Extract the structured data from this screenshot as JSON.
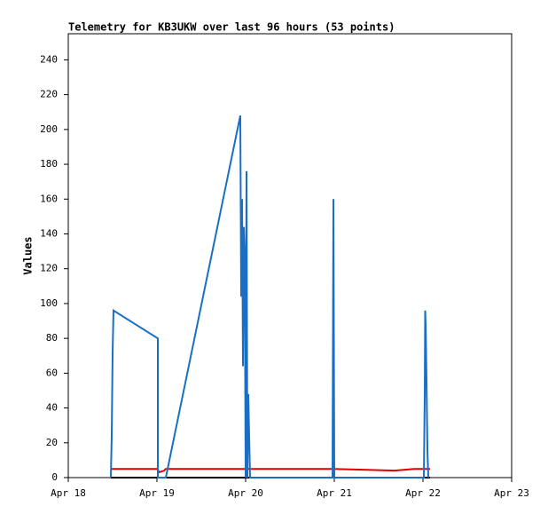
{
  "chart_data": {
    "type": "line",
    "title": "Telemetry for KB3UKW over last 96 hours (53 points)",
    "y_label": "Values",
    "xlim": [
      18,
      23
    ],
    "xticks": [
      {
        "value": 18,
        "label": "Apr 18"
      },
      {
        "value": 19,
        "label": "Apr 19"
      },
      {
        "value": 20,
        "label": "Apr 20"
      },
      {
        "value": 21,
        "label": "Apr 21"
      },
      {
        "value": 22,
        "label": "Apr 22"
      },
      {
        "value": 23,
        "label": "Apr 23"
      }
    ],
    "ylim": [
      0,
      255
    ],
    "yticks": [
      0,
      20,
      40,
      60,
      80,
      100,
      120,
      140,
      160,
      180,
      200,
      220,
      240
    ],
    "series": [
      {
        "color": "#000000",
        "x": [
          18.48,
          22.08
        ],
        "values": [
          0,
          0
        ]
      },
      {
        "color": "#e00000",
        "x": [
          18.48,
          19.01,
          19.02,
          19.08,
          19.1,
          20.98,
          21.28,
          21.68,
          21.9,
          22.08
        ],
        "values": [
          5,
          5,
          3,
          4,
          5,
          5,
          4.6,
          4,
          5,
          5
        ]
      },
      {
        "color": "#1a6fc4",
        "x": [
          18.48,
          18.49,
          18.5,
          18.51,
          19.01,
          19.01,
          19.1,
          19.94,
          19.95,
          19.96,
          19.97,
          19.98,
          19.99,
          20.0,
          20.01,
          20.02,
          20.03,
          20.04,
          20.05,
          20.98,
          20.985,
          20.99,
          21.0,
          22.01,
          22.02,
          22.025,
          22.03,
          22.04,
          22.05,
          22.06
        ],
        "values": [
          0,
          24,
          72,
          96,
          80,
          0,
          0,
          208,
          104,
          160,
          64,
          144,
          128,
          0,
          176,
          0,
          48,
          24,
          0,
          0,
          80,
          160,
          0,
          0,
          48,
          96,
          88,
          56,
          16,
          0
        ]
      }
    ]
  }
}
